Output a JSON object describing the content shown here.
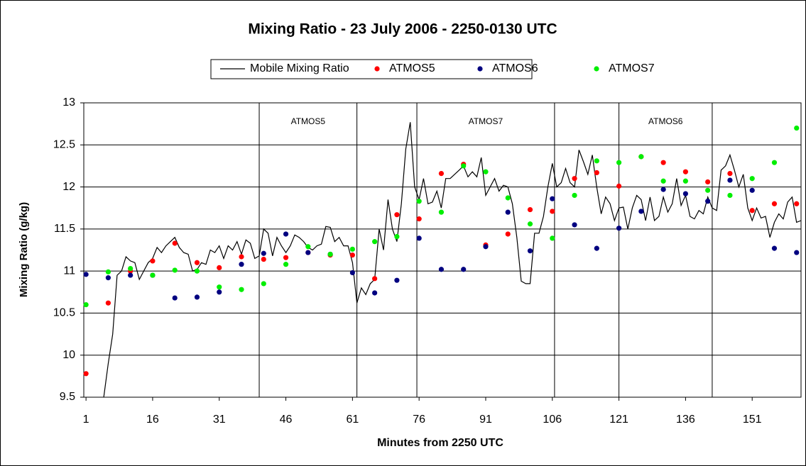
{
  "chart_data": {
    "type": "line",
    "title": "Mixing Ratio - 23 July 2006 - 2250-0130 UTC",
    "xlabel": "Minutes from 2250 UTC",
    "ylabel": "Mixing Ratio (g/kg)",
    "xlim": [
      0.5,
      162
    ],
    "xticks": [
      1,
      16,
      31,
      46,
      61,
      76,
      91,
      106,
      121,
      136,
      151
    ],
    "ylim": [
      9.5,
      13
    ],
    "yticks": [
      13,
      12.5,
      12,
      11.5,
      11,
      10.5,
      10,
      9.5
    ],
    "grid": true,
    "legend": "top",
    "annotations": [
      {
        "label": "ATMOS5",
        "x": [
          40,
          62
        ]
      },
      {
        "label": "ATMOS7",
        "x": [
          75.5,
          106.5
        ]
      },
      {
        "label": "ATMOS6",
        "x": [
          121,
          142
        ]
      }
    ],
    "series": [
      {
        "name": "Mobile Mixing Ratio",
        "color": "#000000",
        "kind": "line",
        "x": [
          5,
          6,
          7,
          8,
          9,
          10,
          11,
          12,
          13,
          14,
          15,
          16,
          17,
          18,
          19,
          20,
          21,
          22,
          23,
          24,
          25,
          26,
          27,
          28,
          29,
          30,
          31,
          32,
          33,
          34,
          35,
          36,
          37,
          38,
          39,
          40,
          41,
          42,
          43,
          44,
          45,
          46,
          47,
          48,
          49,
          50,
          51,
          52,
          53,
          54,
          55,
          56,
          57,
          58,
          59,
          60,
          61,
          62,
          63,
          64,
          65,
          66,
          67,
          68,
          69,
          70,
          71,
          72,
          73,
          74,
          75,
          76,
          77,
          78,
          79,
          80,
          81,
          82,
          83,
          84,
          85,
          86,
          87,
          88,
          89,
          90,
          91,
          92,
          93,
          94,
          95,
          96,
          97,
          98,
          99,
          100,
          101,
          102,
          103,
          104,
          105,
          106,
          107,
          108,
          109,
          110,
          111,
          112,
          113,
          114,
          115,
          116,
          117,
          118,
          119,
          120,
          121,
          122,
          123,
          124,
          125,
          126,
          127,
          128,
          129,
          130,
          131,
          132,
          133,
          134,
          135,
          136,
          137,
          138,
          139,
          140,
          141,
          142,
          143,
          144,
          145,
          146,
          147,
          148,
          149,
          150,
          151,
          152,
          153,
          154,
          155,
          156,
          157,
          158,
          159,
          160,
          161,
          162
        ],
        "values": [
          9.5,
          9.9,
          10.25,
          10.95,
          11.0,
          11.17,
          11.12,
          11.1,
          10.9,
          11.0,
          11.1,
          11.15,
          11.28,
          11.22,
          11.3,
          11.35,
          11.4,
          11.28,
          11.22,
          11.2,
          11.0,
          11.02,
          11.1,
          11.08,
          11.25,
          11.22,
          11.3,
          11.15,
          11.3,
          11.25,
          11.35,
          11.2,
          11.37,
          11.33,
          11.15,
          11.18,
          11.5,
          11.45,
          11.18,
          11.4,
          11.3,
          11.22,
          11.3,
          11.43,
          11.4,
          11.35,
          11.28,
          11.25,
          11.3,
          11.32,
          11.53,
          11.52,
          11.35,
          11.4,
          11.3,
          11.3,
          11.1,
          10.62,
          10.8,
          10.72,
          10.85,
          10.9,
          11.5,
          11.25,
          11.85,
          11.5,
          11.35,
          11.8,
          12.45,
          12.77,
          12.0,
          11.85,
          12.1,
          11.8,
          11.82,
          11.95,
          11.75,
          12.1,
          12.1,
          12.15,
          12.2,
          12.25,
          12.12,
          12.18,
          12.12,
          12.35,
          11.9,
          12.0,
          12.1,
          11.95,
          12.02,
          12.0,
          11.8,
          11.4,
          10.88,
          10.85,
          10.85,
          11.45,
          11.45,
          11.65,
          12.0,
          12.28,
          12.0,
          12.05,
          12.22,
          12.05,
          12.0,
          12.44,
          12.3,
          12.15,
          12.38,
          12.0,
          11.68,
          11.88,
          11.8,
          11.6,
          11.75,
          11.76,
          11.5,
          11.75,
          11.9,
          11.85,
          11.6,
          11.88,
          11.6,
          11.65,
          11.88,
          11.7,
          11.8,
          12.1,
          11.78,
          11.9,
          11.65,
          11.62,
          11.72,
          11.68,
          11.88,
          11.75,
          11.72,
          12.2,
          12.25,
          12.38,
          12.2,
          12.0,
          12.15,
          11.75,
          11.6,
          11.75,
          11.63,
          11.65,
          11.4,
          11.58,
          11.68,
          11.62,
          11.82,
          11.88,
          11.58,
          11.6
        ]
      },
      {
        "name": "ATMOS5",
        "color": "#ff0000",
        "kind": "scatter",
        "x": [
          1,
          6,
          11,
          16,
          21,
          26,
          31,
          36,
          41,
          46,
          51,
          56,
          61,
          66,
          71,
          76,
          81,
          86,
          91,
          96,
          101,
          106,
          111,
          116,
          121,
          126,
          131,
          136,
          141,
          146,
          151,
          156,
          161
        ],
        "values": [
          9.78,
          10.62,
          11.0,
          11.12,
          11.33,
          11.1,
          11.04,
          11.17,
          11.14,
          11.16,
          11.22,
          11.19,
          11.19,
          10.91,
          11.67,
          11.62,
          12.16,
          12.27,
          11.31,
          11.44,
          11.73,
          11.71,
          12.1,
          12.17,
          12.01,
          12.36,
          12.29,
          12.18,
          12.06,
          12.16,
          11.72,
          11.8,
          11.8
        ]
      },
      {
        "name": "ATMOS6",
        "color": "#000080",
        "kind": "scatter",
        "x": [
          1,
          6,
          11,
          16,
          21,
          26,
          31,
          36,
          41,
          46,
          51,
          56,
          61,
          66,
          71,
          76,
          81,
          86,
          91,
          96,
          101,
          106,
          111,
          116,
          121,
          126,
          131,
          136,
          141,
          146,
          151,
          156,
          161
        ],
        "values": [
          10.96,
          10.92,
          10.95,
          10.95,
          10.68,
          10.69,
          10.75,
          11.08,
          11.21,
          11.44,
          11.22,
          11.2,
          10.98,
          10.74,
          10.89,
          11.39,
          11.02,
          11.02,
          11.29,
          11.7,
          11.24,
          11.86,
          11.55,
          11.27,
          11.51,
          11.71,
          11.97,
          11.92,
          11.83,
          12.08,
          11.96,
          11.27,
          11.22
        ]
      },
      {
        "name": "ATMOS7",
        "color": "#00ee00",
        "kind": "scatter",
        "x": [
          1,
          6,
          11,
          16,
          21,
          26,
          31,
          36,
          41,
          46,
          51,
          56,
          61,
          66,
          71,
          76,
          81,
          86,
          91,
          96,
          101,
          106,
          111,
          116,
          121,
          126,
          131,
          136,
          141,
          146,
          151,
          156,
          161
        ],
        "values": [
          10.6,
          10.99,
          11.03,
          10.95,
          11.01,
          11.0,
          10.81,
          10.78,
          10.85,
          11.08,
          11.29,
          11.2,
          11.26,
          11.35,
          11.41,
          11.83,
          11.7,
          12.25,
          12.18,
          11.87,
          11.56,
          11.39,
          11.9,
          12.31,
          12.29,
          12.36,
          12.07,
          12.07,
          11.96,
          11.9,
          12.1,
          12.29,
          12.7
        ]
      }
    ]
  }
}
